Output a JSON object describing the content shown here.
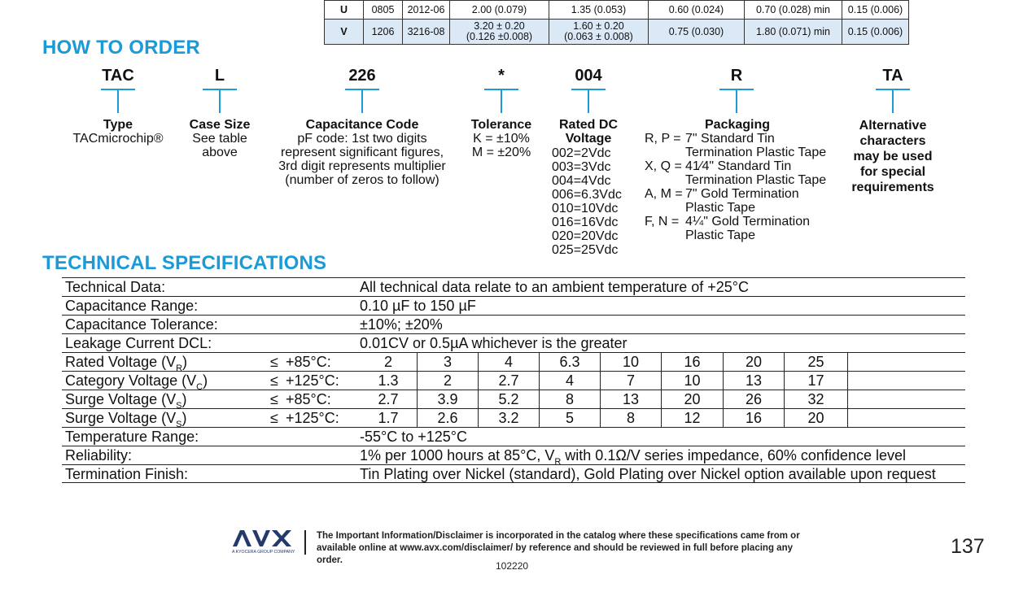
{
  "dimension_table": {
    "rows": [
      {
        "code": "U",
        "eia": "0805",
        "metric": "2012-06",
        "l": [
          "2.00 (0.079)"
        ],
        "w": [
          "1.35 (0.053)"
        ],
        "h": "0.60 (0.024)",
        "w1": "0.70 (0.028) min",
        "a": "0.15 (0.006)"
      },
      {
        "code": "V",
        "eia": "1206",
        "metric": "3216-08",
        "l": [
          "3.20 ± 0.20",
          "(0.126 ±0.008)"
        ],
        "w": [
          "1.60 ± 0.20",
          "(0.063 ± 0.008)"
        ],
        "h": "0.75 (0.030)",
        "w1": "1.80 (0.071) min",
        "a": "0.15 (0.006)"
      }
    ]
  },
  "how_to_order": {
    "title": "HOW TO ORDER",
    "columns": [
      {
        "code": "TAC",
        "title": "Type",
        "lines": [
          "TACmicrochip®"
        ]
      },
      {
        "code": "L",
        "title": "Case Size",
        "lines": [
          "See table",
          "above"
        ]
      },
      {
        "code": "226",
        "title": "Capacitance Code",
        "lines": [
          "pF code: 1st two digits",
          "represent significant figures,",
          "3rd digit represents multiplier",
          "(number of zeros to follow)"
        ]
      },
      {
        "code": "*",
        "title": "Tolerance",
        "lines": [
          "K = ±10%",
          "M = ±20%"
        ]
      },
      {
        "code": "004",
        "title": "Rated DC",
        "title2": "Voltage",
        "lines": [
          "002=2Vdc",
          "003=3Vdc",
          "004=4Vdc",
          "006=6.3Vdc",
          "010=10Vdc",
          "016=16Vdc",
          "020=20Vdc",
          "025=25Vdc"
        ]
      },
      {
        "code": "R",
        "title": "Packaging"
      },
      {
        "code": "TA",
        "title_lines": [
          "Alternative",
          "characters",
          "may be used",
          "for special",
          "requirements"
        ]
      }
    ],
    "packaging": [
      {
        "key": "R, P =",
        "lines": [
          "7\" Standard Tin",
          "Termination Plastic Tape"
        ]
      },
      {
        "key": "X, Q =",
        "lines": [
          "41⁄4\" Standard Tin",
          "Termination Plastic Tape"
        ]
      },
      {
        "key": "A, M =",
        "lines": [
          "7\" Gold Termination",
          "Plastic Tape"
        ]
      },
      {
        "key": "F, N =",
        "lines": [
          "4¼\" Gold Termination",
          "Plastic Tape"
        ]
      }
    ]
  },
  "technical_specifications": {
    "title": "TECHNICAL SPECIFICATIONS",
    "technical_data": {
      "label": "Technical Data:",
      "value": "All technical data relate to an ambient temperature of +25°C"
    },
    "capacitance_range": {
      "label": "Capacitance Range:",
      "value": "0.10 µF to 150 µF"
    },
    "capacitance_tolerance": {
      "label": "Capacitance Tolerance:",
      "value": "±10%; ±20%"
    },
    "leakage_current": {
      "label": "Leakage Current DCL:",
      "value": "0.01CV or 0.5µA whichever is the greater"
    },
    "voltage_rows": [
      {
        "label": "Rated Voltage (V",
        "sub": "R",
        "le": "≤",
        "temp": "+85°C:",
        "values": [
          "2",
          "3",
          "4",
          "6.3",
          "10",
          "16",
          "20",
          "25"
        ]
      },
      {
        "label": "Category Voltage (V",
        "sub": "C",
        "le": "≤",
        "temp": "+125°C:",
        "values": [
          "1.3",
          "2",
          "2.7",
          "4",
          "7",
          "10",
          "13",
          "17"
        ]
      },
      {
        "label": "Surge Voltage (V",
        "sub": "S",
        "le": "≤",
        "temp": "+85°C:",
        "values": [
          "2.7",
          "3.9",
          "5.2",
          "8",
          "13",
          "20",
          "26",
          "32"
        ]
      },
      {
        "label": "Surge Voltage (V",
        "sub": "S",
        "le": "≤",
        "temp": "+125°C:",
        "values": [
          "1.7",
          "2.6",
          "3.2",
          "5",
          "8",
          "12",
          "16",
          "20"
        ]
      }
    ],
    "temperature_range": {
      "label": "Temperature Range:",
      "value": "-55°C to +125°C"
    },
    "reliability": {
      "label": "Reliability:",
      "value_pre": "1% per 1000 hours at 85°C, V",
      "value_sub": "R",
      "value_post": " with 0.1Ω/V series impedance, 60% confidence level"
    },
    "termination_finish": {
      "label": "Termination Finish:",
      "value": "Tin Plating over Nickel (standard), Gold Plating over Nickel option available upon request"
    }
  },
  "footer": {
    "logo_text": "AVX",
    "logo_subtext": "A KYOCERA GROUP COMPANY",
    "disclaimer_lines": [
      "The Important Information/Disclaimer is incorporated in the catalog where these specifications came from or",
      "available online at www.avx.com/disclaimer/ by reference and should be reviewed in full before placing any order."
    ],
    "doc_code": "102220",
    "page_number": "137"
  },
  "colors": {
    "accent": "#1a9ad6",
    "table_highlight": "#dbe9f6"
  }
}
